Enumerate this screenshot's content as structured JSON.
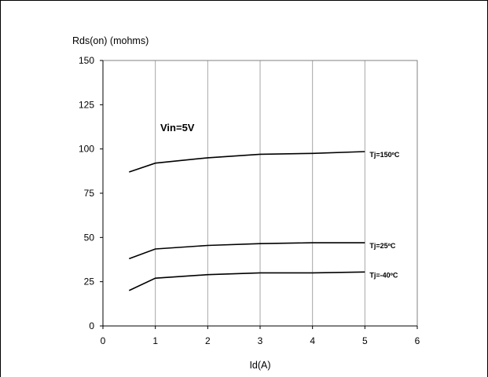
{
  "chart_data": {
    "type": "line",
    "title": "",
    "ylabel": "Rds(on) (mohms)",
    "xlabel": "Id(A)",
    "xlim": [
      0,
      6
    ],
    "ylim": [
      0,
      150
    ],
    "xticks": [
      0,
      1,
      2,
      3,
      4,
      5,
      6
    ],
    "yticks": [
      0,
      25,
      50,
      75,
      100,
      125,
      150
    ],
    "xtick_labels": [
      "0",
      "1",
      "2",
      "3",
      "4",
      "5",
      "6"
    ],
    "ytick_labels": [
      "0",
      "25",
      "50",
      "75",
      "100",
      "125",
      "150"
    ],
    "grid": "vertical",
    "annotation": "Vin=5V",
    "series": [
      {
        "name": "Tj=150ºC",
        "x": [
          0.5,
          1,
          2,
          3,
          4,
          5
        ],
        "y": [
          87,
          92,
          95,
          97,
          97.5,
          98.5
        ]
      },
      {
        "name": "Tj=25ºC",
        "x": [
          0.5,
          1,
          2,
          3,
          4,
          5
        ],
        "y": [
          38,
          43.5,
          45.5,
          46.5,
          47,
          47
        ]
      },
      {
        "name": "Tj=-40ºC",
        "x": [
          0.5,
          1,
          2,
          3,
          4,
          5
        ],
        "y": [
          20,
          27,
          29,
          30,
          30,
          30.5
        ]
      }
    ]
  }
}
